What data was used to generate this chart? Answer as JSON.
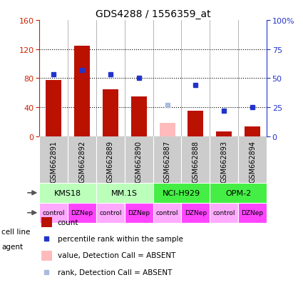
{
  "title": "GDS4288 / 1556359_at",
  "samples": [
    "GSM662891",
    "GSM662892",
    "GSM662889",
    "GSM662890",
    "GSM662887",
    "GSM662888",
    "GSM662893",
    "GSM662894"
  ],
  "count_values": [
    77,
    125,
    65,
    55,
    null,
    35,
    7,
    14
  ],
  "count_absent": [
    null,
    null,
    null,
    null,
    18,
    null,
    null,
    null
  ],
  "rank_values": [
    53,
    57,
    53,
    50,
    null,
    44,
    22,
    25
  ],
  "rank_absent": [
    null,
    null,
    null,
    null,
    27,
    null,
    null,
    null
  ],
  "cell_line_labels": [
    "KMS18",
    "MM.1S",
    "NCI-H929",
    "OPM-2"
  ],
  "cell_line_spans": [
    [
      0,
      2
    ],
    [
      2,
      4
    ],
    [
      4,
      6
    ],
    [
      6,
      8
    ]
  ],
  "cell_line_colors": [
    "#bbffbb",
    "#bbffbb",
    "#44ee44",
    "#44ee44"
  ],
  "agents": [
    "control",
    "DZNep",
    "control",
    "DZNep",
    "control",
    "DZNep",
    "control",
    "DZNep"
  ],
  "agent_color_control": "#ffaaff",
  "agent_color_dzNep": "#ff44ff",
  "ylim_left": [
    0,
    160
  ],
  "ylim_right": [
    0,
    100
  ],
  "yticks_left": [
    0,
    40,
    80,
    120,
    160
  ],
  "ytick_labels_left": [
    "0",
    "40",
    "80",
    "120",
    "160"
  ],
  "yticks_right": [
    0,
    25,
    50,
    75,
    100
  ],
  "ytick_labels_right": [
    "0",
    "25",
    "50",
    "75",
    "100%"
  ],
  "bar_color": "#bb1100",
  "bar_absent_color": "#ffbbbb",
  "dot_color": "#2233cc",
  "dot_absent_color": "#aabbdd",
  "bg_color": "#ffffff",
  "label_color_left": "#cc2200",
  "label_color_right": "#2233cc",
  "xticklabel_bg": "#cccccc",
  "legend_items": [
    {
      "color": "#bb1100",
      "type": "rect",
      "label": "count"
    },
    {
      "color": "#2233cc",
      "type": "square",
      "label": "percentile rank within the sample"
    },
    {
      "color": "#ffbbbb",
      "type": "rect",
      "label": "value, Detection Call = ABSENT"
    },
    {
      "color": "#aabbdd",
      "type": "square",
      "label": "rank, Detection Call = ABSENT"
    }
  ]
}
